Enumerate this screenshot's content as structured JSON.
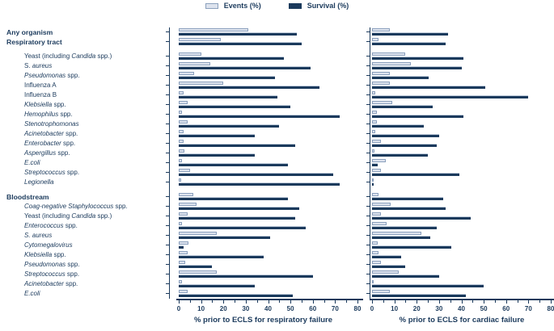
{
  "chart_data": {
    "type": "bar",
    "orientation": "horizontal",
    "grid": false,
    "legend": {
      "position": "top",
      "entries": [
        {
          "label": "Events (%)",
          "color": "#dde3ee",
          "border": "#8ba0bd"
        },
        {
          "label": "Survival (%)",
          "color": "#1b3a5c",
          "border": "#1b3a5c"
        }
      ]
    },
    "xlim": [
      0,
      80
    ],
    "xticks": [
      0,
      10,
      20,
      30,
      40,
      50,
      60,
      70,
      80
    ],
    "minor_tick_step": 5,
    "categories": [
      {
        "label": "Any organism",
        "bold": true,
        "italic": null
      },
      {
        "label": "Respiratory tract",
        "bold": true,
        "italic": null
      },
      {
        "label": "Yeast (including Candida spp.)",
        "bold": false,
        "italic": "Candida"
      },
      {
        "label": "S. aureus",
        "bold": false,
        "italic": "aureus"
      },
      {
        "label": "Pseudomonas spp.",
        "bold": false,
        "italic": "Pseudomonas"
      },
      {
        "label": "Influenza A",
        "bold": false,
        "italic": null
      },
      {
        "label": "Influenza B",
        "bold": false,
        "italic": null
      },
      {
        "label": "Klebsiella spp.",
        "bold": false,
        "italic": "Klebsiella"
      },
      {
        "label": "Hemophilus spp.",
        "bold": false,
        "italic": "Hemophilus"
      },
      {
        "label": "Stenotrophomonas",
        "bold": false,
        "italic": "Stenotrophomonas"
      },
      {
        "label": "Acinetobacter spp.",
        "bold": false,
        "italic": "Acinetobacter"
      },
      {
        "label": "Enterobacter spp.",
        "bold": false,
        "italic": "Enterobacter"
      },
      {
        "label": "Aspergillus spp.",
        "bold": false,
        "italic": "Aspergillus"
      },
      {
        "label": "E.coli",
        "bold": false,
        "italic": "E.coli"
      },
      {
        "label": "Streptococcus spp.",
        "bold": false,
        "italic": "Streptococcus"
      },
      {
        "label": "Legionella",
        "bold": false,
        "italic": "Legionella"
      },
      {
        "label": "Bloodstream",
        "bold": true,
        "italic": null
      },
      {
        "label": "Coag-negative Staphylococcus spp.",
        "bold": false,
        "italic": "Coag-negative Staphylococcus"
      },
      {
        "label": "Yeast (including Candida spp.)",
        "bold": false,
        "italic": "Candida"
      },
      {
        "label": "Enterococcus spp.",
        "bold": false,
        "italic": "Enterococcus"
      },
      {
        "label": "S. aureus",
        "bold": false,
        "italic": "S. aureus"
      },
      {
        "label": "Cytomegalovirus",
        "bold": false,
        "italic": "Cytomegalovirus"
      },
      {
        "label": "Klebsiella spp.",
        "bold": false,
        "italic": "Klebsiella"
      },
      {
        "label": "Pseudomonas spp.",
        "bold": false,
        "italic": "Pseudomonas"
      },
      {
        "label": "Streptococcus spp.",
        "bold": false,
        "italic": "Streptococcus"
      },
      {
        "label": "Acinetobacter spp.",
        "bold": false,
        "italic": "Acinetobacter"
      },
      {
        "label": "E.coli",
        "bold": false,
        "italic": "E.coli"
      }
    ],
    "panels": [
      {
        "xlabel": "% prior to ECLS for respiratory failure",
        "series": [
          {
            "name": "Events (%)",
            "values": [
              31,
              19,
              10,
              14,
              7,
              20,
              2,
              4,
              1.5,
              4,
              2,
              2,
              2.5,
              1.5,
              5,
              1,
              6.5,
              8,
              4,
              1.5,
              17,
              4.5,
              4,
              3,
              17,
              1.5,
              4
            ]
          },
          {
            "name": "Survival (%)",
            "values": [
              53,
              55,
              47,
              59,
              43,
              63,
              44,
              50,
              72,
              45,
              34,
              52,
              34,
              49,
              69,
              72,
              49,
              54,
              52,
              57,
              41,
              2,
              38,
              15,
              60,
              34,
              51
            ]
          }
        ]
      },
      {
        "xlabel": "% prior to ECLS for cardiac failure",
        "series": [
          {
            "name": "Events (%)",
            "values": [
              8,
              3,
              15,
              17.5,
              8,
              8,
              1.5,
              9,
              2,
              2,
              1.5,
              4,
              1,
              6,
              4,
              0.5,
              3,
              8.5,
              4,
              6.5,
              22,
              2.5,
              3,
              4,
              12,
              0.5,
              8
            ]
          },
          {
            "name": "Survival (%)",
            "values": [
              34,
              33,
              41,
              40,
              25.5,
              50.5,
              70,
              27,
              41,
              23,
              30,
              29,
              25,
              2.5,
              39,
              0.5,
              32,
              33,
              44,
              29,
              26,
              35.5,
              13,
              15,
              30,
              50,
              42
            ]
          }
        ]
      }
    ]
  }
}
